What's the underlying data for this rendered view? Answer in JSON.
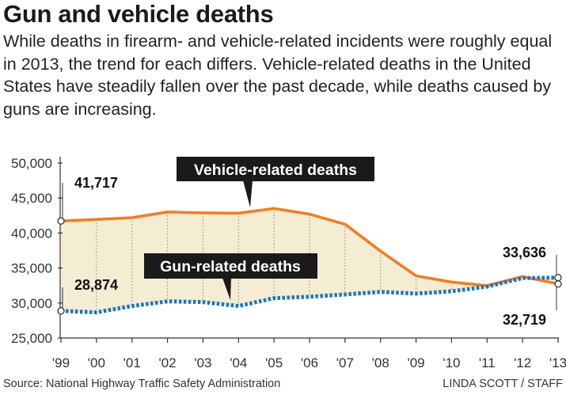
{
  "title": "Gun and vehicle deaths",
  "subtitle": "While deaths in firearm- and vehicle-related incidents were roughly equal in 2013, the trend for each differs. Vehicle-related deaths in the United States have steadily fallen over the past decade, while deaths caused by guns are increasing.",
  "source": "Source: National Highway Traffic Safety Administration",
  "credit": "LINDA SCOTT / STAFF",
  "colors": {
    "vehicle": "#f07e26",
    "gun": "#1c75bc",
    "fill": "#f4ecd3",
    "label_bg": "#1a1a1a"
  },
  "chart_data": {
    "type": "line",
    "categories": [
      "'99",
      "'00",
      "'01",
      "'02",
      "'03",
      "'04",
      "'05",
      "'06",
      "'07",
      "'08",
      "'09",
      "'10",
      "'11",
      "'12",
      "'13"
    ],
    "series": [
      {
        "name": "Vehicle-related deaths",
        "values": [
          41717,
          41945,
          42196,
          43005,
          42884,
          42836,
          43510,
          42708,
          41259,
          37423,
          33883,
          32999,
          32479,
          33782,
          32719
        ]
      },
      {
        "name": "Gun-related deaths",
        "values": [
          28874,
          28663,
          29573,
          30242,
          30136,
          29569,
          30694,
          30896,
          31224,
          31593,
          31347,
          31672,
          32351,
          33563,
          33636
        ]
      }
    ],
    "yticks": [
      "50,000",
      "45,000",
      "40,000",
      "35,000",
      "30,000",
      "25,000"
    ],
    "ytick_values": [
      50000,
      45000,
      40000,
      35000,
      30000,
      25000
    ],
    "ylim": [
      25000,
      50000
    ],
    "annotations": {
      "vehicle_start": "41,717",
      "gun_start": "28,874",
      "gun_end": "33,636",
      "vehicle_end": "32,719"
    },
    "xlabel": "",
    "ylabel": "",
    "grid": false
  }
}
